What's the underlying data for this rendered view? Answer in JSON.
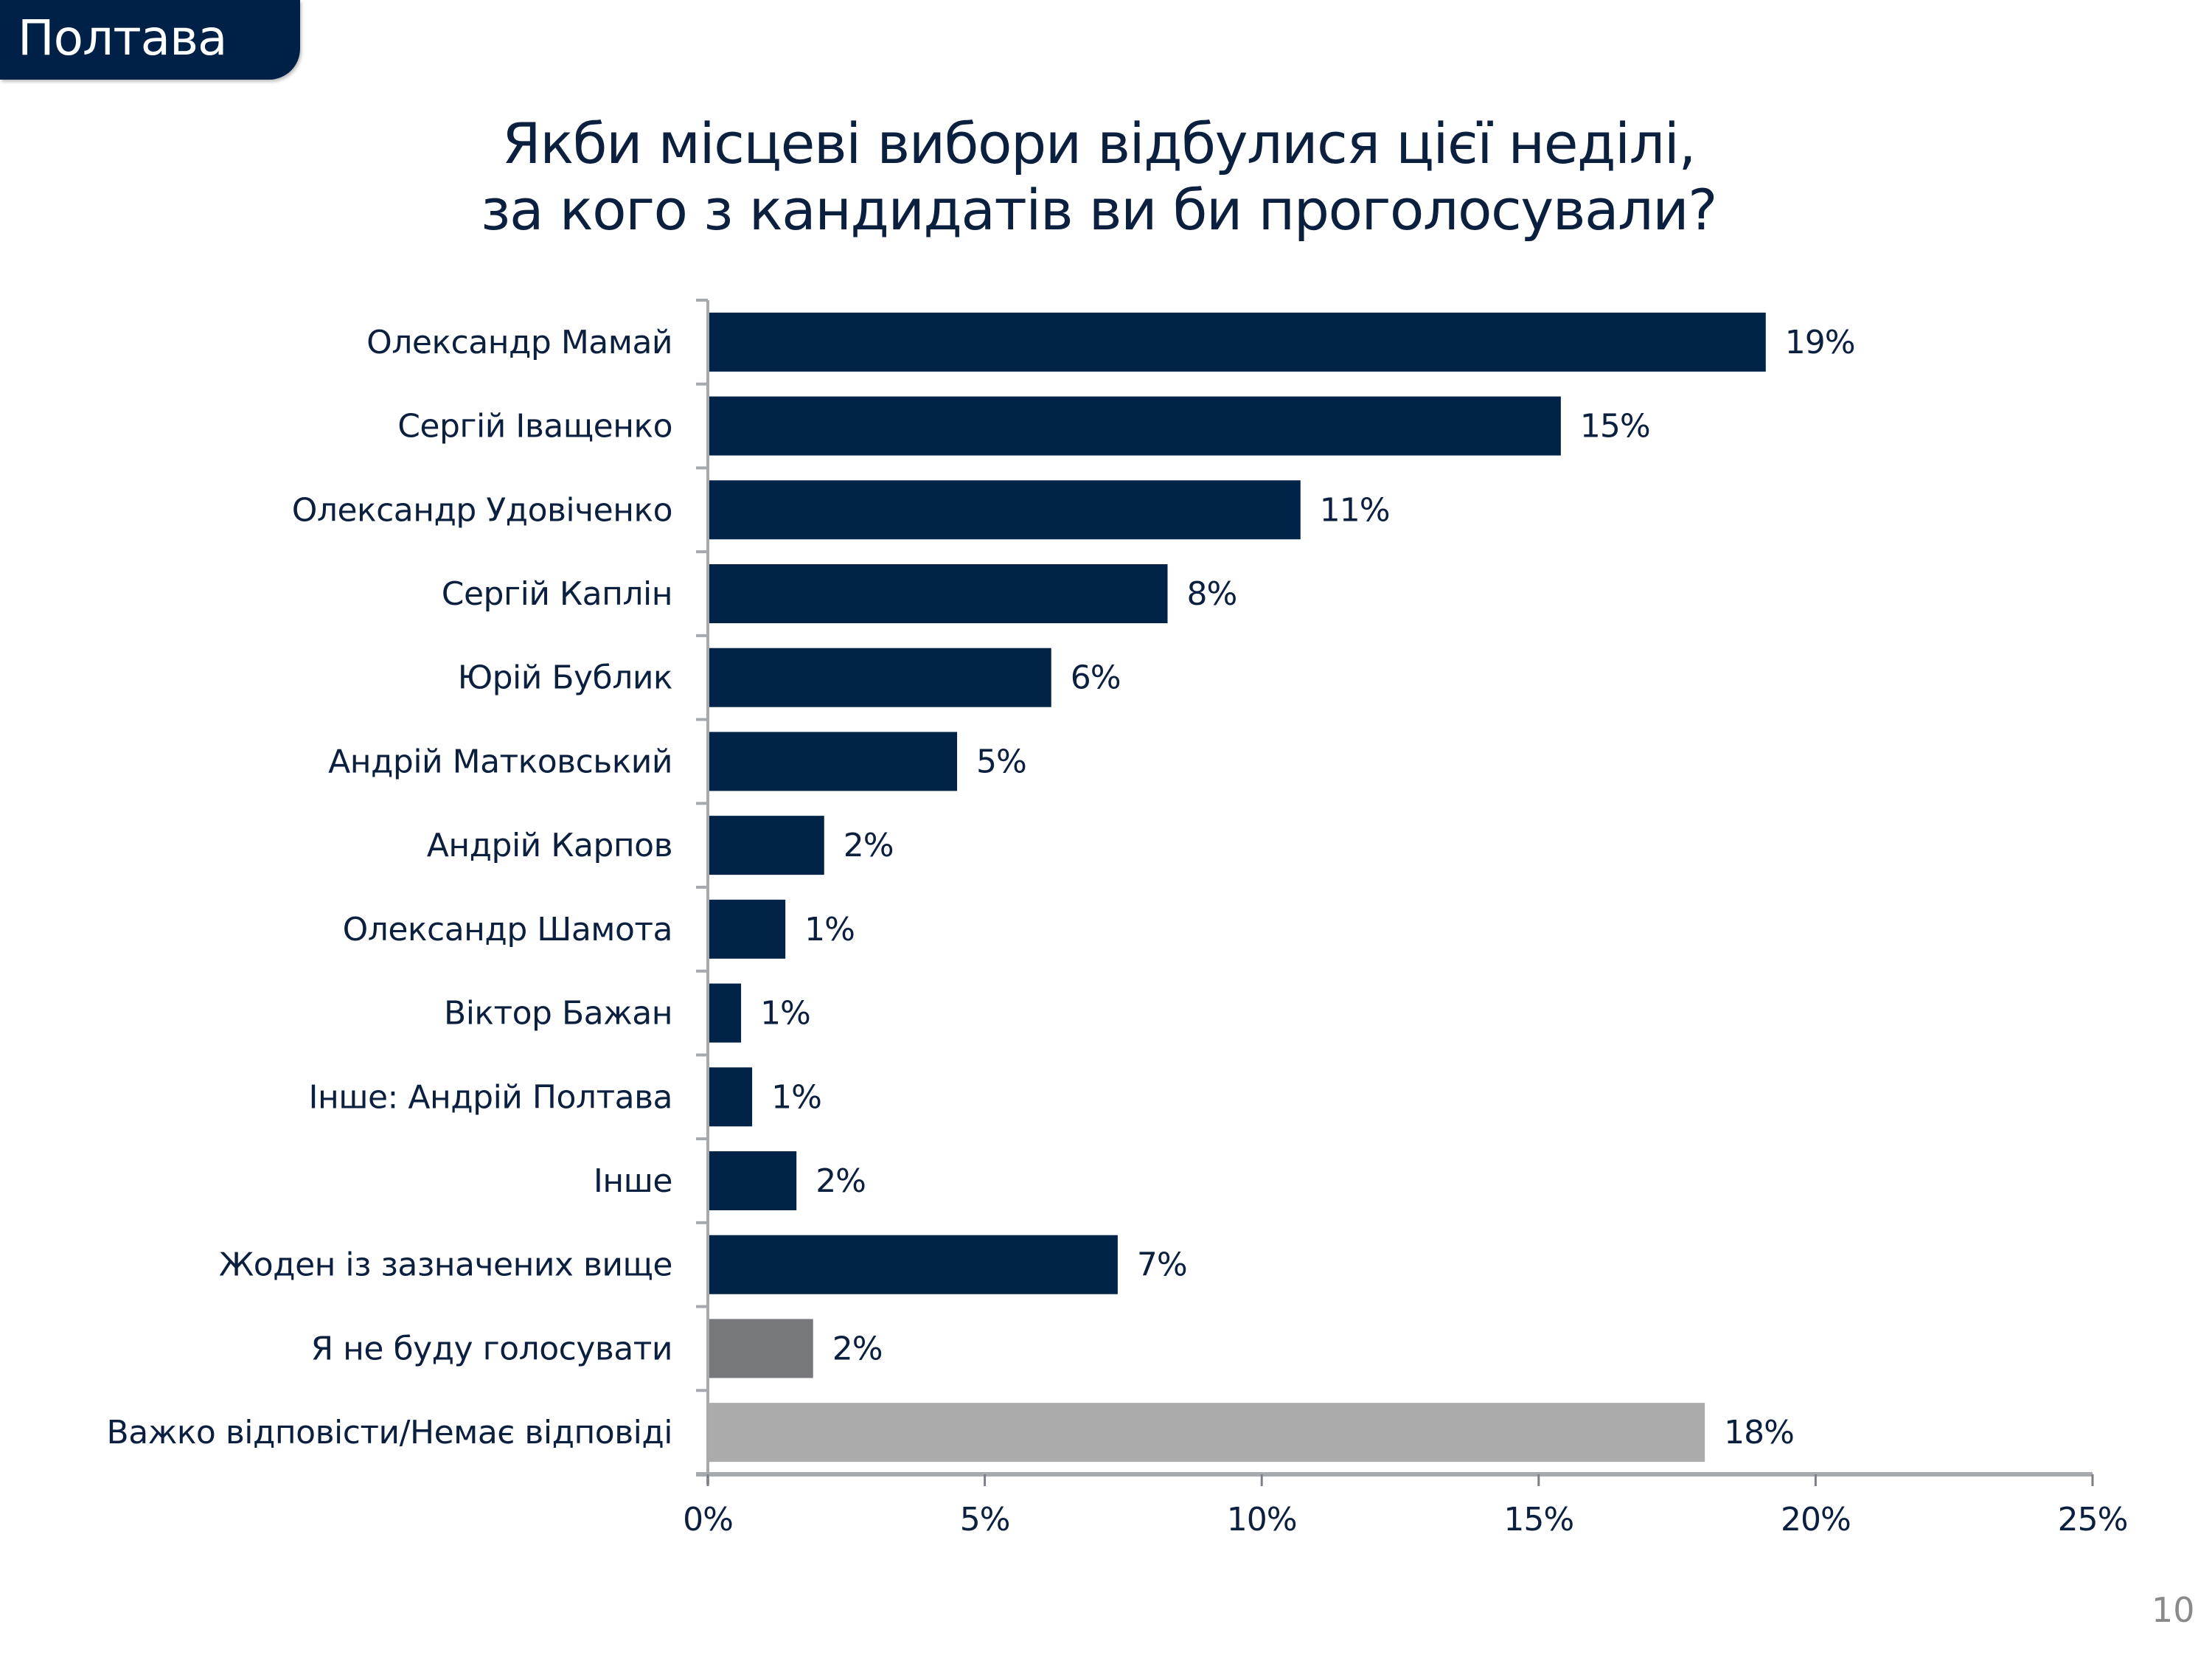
{
  "header": {
    "region": "Полтава"
  },
  "page_number": "10",
  "colors": {
    "primary_bar": "#002347",
    "wont_vote_bar": "#76787c",
    "no_answer_bar": "#ababab",
    "text": "#0b1f3f",
    "axis": "#a6a9ae"
  },
  "chart_data": {
    "type": "bar",
    "orientation": "horizontal",
    "title": "Якби місцеві вибори відбулися цієї неділі, за кого з кандидатів ви би проголосували?",
    "title_lines": [
      "Якби місцеві вибори відбулися цієї неділі,",
      "за кого з кандидатів ви би проголосували?"
    ],
    "xlabel": "",
    "ylabel": "",
    "xlim": [
      0,
      25
    ],
    "x_ticks": [
      0,
      5,
      10,
      15,
      20,
      25
    ],
    "x_tick_labels": [
      "0%",
      "5%",
      "10%",
      "15%",
      "20%",
      "25%"
    ],
    "grid": false,
    "legend": "none",
    "categories": [
      "Олександр Мамай",
      "Сергій Іващенко",
      "Олександр Удовіченко",
      "Сергій Каплін",
      "Юрій Бублик",
      "Андрій Матковський",
      "Андрій Карпов",
      "Олександр Шамота",
      "Віктор Бажан",
      "Інше: Андрій Полтава",
      "Інше",
      "Жоден із зазначених вище",
      "Я не буду голосувати",
      "Важко відповісти/Немає відповіді"
    ],
    "values": [
      19.1,
      15.4,
      10.7,
      8.3,
      6.2,
      4.5,
      2.1,
      1.4,
      0.6,
      0.8,
      1.6,
      7.4,
      1.9,
      18.0
    ],
    "value_labels": [
      "19%",
      "15%",
      "11%",
      "8%",
      "6%",
      "5%",
      "2%",
      "1%",
      "1%",
      "1%",
      "2%",
      "7%",
      "2%",
      "18%"
    ],
    "bar_color_keys": [
      "primary_bar",
      "primary_bar",
      "primary_bar",
      "primary_bar",
      "primary_bar",
      "primary_bar",
      "primary_bar",
      "primary_bar",
      "primary_bar",
      "primary_bar",
      "primary_bar",
      "primary_bar",
      "wont_vote_bar",
      "no_answer_bar"
    ]
  }
}
